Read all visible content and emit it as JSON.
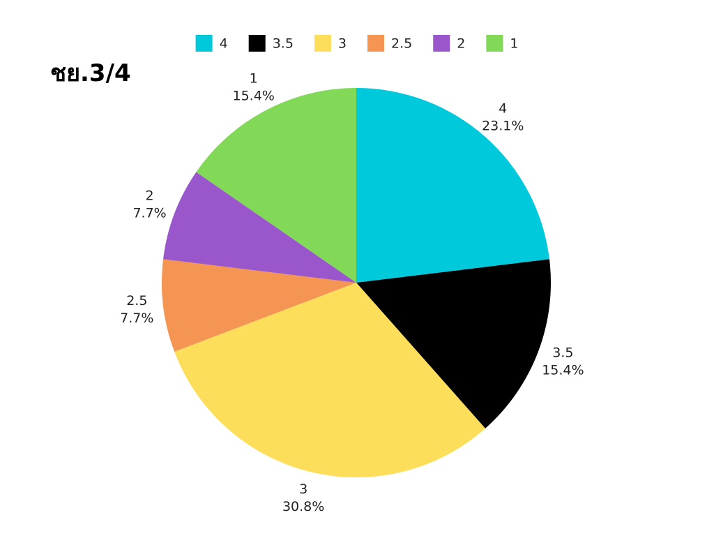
{
  "chart_data": {
    "type": "pie",
    "title": "ชย.3/4",
    "legend_position": "top",
    "slices": [
      {
        "label": "4",
        "percent_label": "23.1%",
        "value": 23.1,
        "color": "#00C9DB"
      },
      {
        "label": "3.5",
        "percent_label": "15.4%",
        "value": 15.4,
        "color": "#000000"
      },
      {
        "label": "3",
        "percent_label": "30.8%",
        "value": 30.8,
        "color": "#FDDE5B"
      },
      {
        "label": "2.5",
        "percent_label": "7.7%",
        "value": 7.7,
        "color": "#F59554"
      },
      {
        "label": "2",
        "percent_label": "7.7%",
        "value": 7.7,
        "color": "#9957CB"
      },
      {
        "label": "1",
        "percent_label": "15.4%",
        "value": 15.4,
        "color": "#81D957"
      }
    ]
  }
}
